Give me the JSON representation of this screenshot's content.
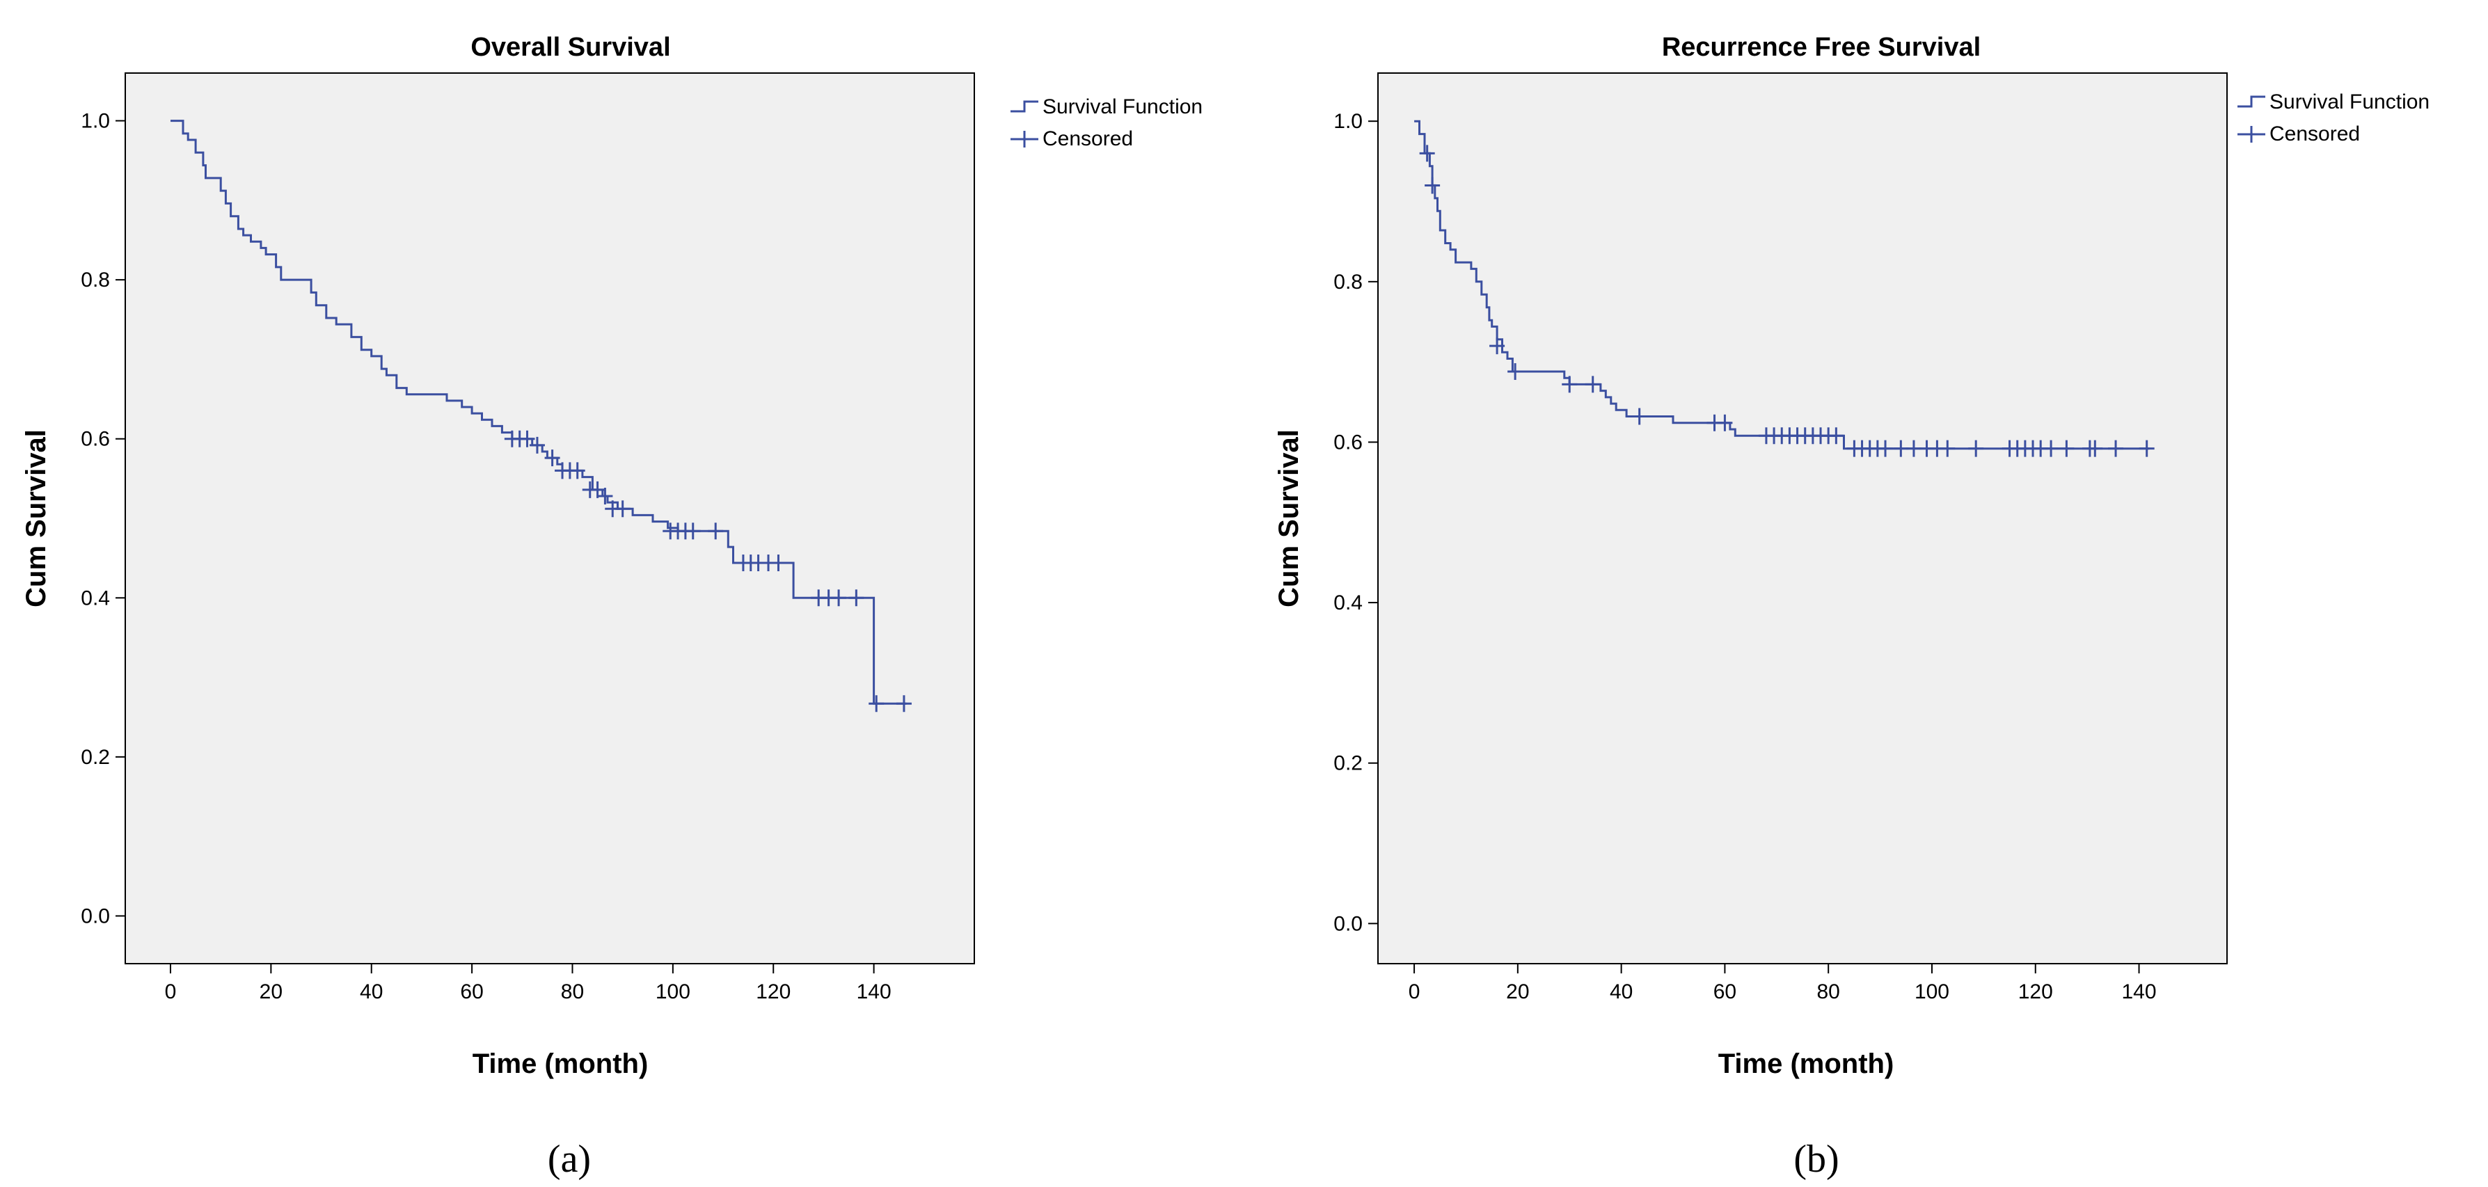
{
  "colors": {
    "plot_background": "#f0f0f0",
    "plot_border": "#000000",
    "curve": "#3b4fa0",
    "axis": "#000000"
  },
  "chart_data": [
    {
      "type": "line",
      "subtype": "kaplan-meier-step",
      "panel_caption": "(a)",
      "title": "Overall Survival",
      "xlabel": "Time (month)",
      "ylabel": "Cum Survival",
      "xlim": [
        -9,
        160
      ],
      "ylim": [
        -0.06,
        1.06
      ],
      "xticks": [
        0,
        20,
        40,
        60,
        80,
        100,
        120,
        140
      ],
      "yticks": [
        0.0,
        0.2,
        0.4,
        0.6,
        0.8,
        1.0
      ],
      "ytick_labels": [
        "0.0",
        "0.2",
        "0.4",
        "0.6",
        "0.8",
        "1.0"
      ],
      "grid": false,
      "legend": {
        "position": "top-right-outside",
        "entries": [
          {
            "label": "Survival Function",
            "symbol": "step",
            "icon": "step-line-icon"
          },
          {
            "label": "Censored",
            "symbol": "plus",
            "icon": "plus-marker-icon"
          }
        ]
      },
      "series": [
        {
          "name": "Survival Function",
          "steps": [
            [
              0,
              1.0
            ],
            [
              2.5,
              0.984
            ],
            [
              3.5,
              0.976
            ],
            [
              5,
              0.96
            ],
            [
              6.5,
              0.944
            ],
            [
              7,
              0.928
            ],
            [
              10,
              0.912
            ],
            [
              11,
              0.896
            ],
            [
              12,
              0.88
            ],
            [
              13.5,
              0.864
            ],
            [
              14.5,
              0.856
            ],
            [
              16,
              0.848
            ],
            [
              18,
              0.84
            ],
            [
              19,
              0.832
            ],
            [
              21,
              0.816
            ],
            [
              22,
              0.8
            ],
            [
              28,
              0.784
            ],
            [
              29,
              0.768
            ],
            [
              31,
              0.752
            ],
            [
              33,
              0.744
            ],
            [
              36,
              0.728
            ],
            [
              38,
              0.712
            ],
            [
              40,
              0.704
            ],
            [
              42,
              0.688
            ],
            [
              43,
              0.68
            ],
            [
              45,
              0.664
            ],
            [
              47,
              0.656
            ],
            [
              55,
              0.648
            ],
            [
              58,
              0.64
            ],
            [
              60,
              0.632
            ],
            [
              62,
              0.624
            ],
            [
              64,
              0.616
            ],
            [
              66,
              0.608
            ],
            [
              68,
              0.6
            ],
            [
              72,
              0.592
            ],
            [
              74,
              0.584
            ],
            [
              75,
              0.576
            ],
            [
              77,
              0.568
            ],
            [
              78,
              0.56
            ],
            [
              82,
              0.552
            ],
            [
              84,
              0.536
            ],
            [
              86,
              0.528
            ],
            [
              87,
              0.52
            ],
            [
              89,
              0.512
            ],
            [
              92,
              0.504
            ],
            [
              96,
              0.496
            ],
            [
              99,
              0.488
            ],
            [
              101,
              0.484
            ],
            [
              111,
              0.464
            ],
            [
              112,
              0.444
            ],
            [
              124,
              0.4
            ],
            [
              140,
              0.267
            ]
          ],
          "end_time": 146.5
        }
      ],
      "censored": {
        "x": [
          68,
          69.5,
          71,
          73,
          76,
          78,
          79.5,
          81,
          83.5,
          85,
          86.5,
          88,
          90,
          99.5,
          101,
          102.5,
          104,
          108.5,
          114,
          115.5,
          117,
          119,
          121,
          129,
          131,
          133,
          136.5,
          140.5,
          146
        ],
        "y": [
          0.6,
          0.6,
          0.6,
          0.592,
          0.576,
          0.56,
          0.56,
          0.56,
          0.536,
          0.536,
          0.528,
          0.512,
          0.512,
          0.484,
          0.484,
          0.484,
          0.484,
          0.484,
          0.444,
          0.444,
          0.444,
          0.444,
          0.444,
          0.4,
          0.4,
          0.4,
          0.4,
          0.267,
          0.267
        ]
      }
    },
    {
      "type": "line",
      "subtype": "kaplan-meier-step",
      "panel_caption": "(b)",
      "title": "Recurrence Free Survival",
      "xlabel": "Time (month)",
      "ylabel": "Cum Survival",
      "xlim": [
        -7,
        157
      ],
      "ylim": [
        -0.05,
        1.06
      ],
      "xticks": [
        0,
        20,
        40,
        60,
        80,
        100,
        120,
        140
      ],
      "yticks": [
        0.0,
        0.2,
        0.4,
        0.6,
        0.8,
        1.0
      ],
      "ytick_labels": [
        "0.0",
        "0.2",
        "0.4",
        "0.6",
        "0.8",
        "1.0"
      ],
      "grid": false,
      "legend": {
        "position": "top-right-outside",
        "entries": [
          {
            "label": "Survival Function",
            "symbol": "step",
            "icon": "step-line-icon"
          },
          {
            "label": "Censored",
            "symbol": "plus",
            "icon": "plus-marker-icon"
          }
        ]
      },
      "series": [
        {
          "name": "Survival Function",
          "steps": [
            [
              0,
              1.0
            ],
            [
              1,
              0.984
            ],
            [
              2,
              0.96
            ],
            [
              3,
              0.944
            ],
            [
              3.5,
              0.92
            ],
            [
              4,
              0.904
            ],
            [
              4.5,
              0.888
            ],
            [
              5,
              0.864
            ],
            [
              6,
              0.848
            ],
            [
              7,
              0.84
            ],
            [
              8,
              0.824
            ],
            [
              11,
              0.816
            ],
            [
              12,
              0.8
            ],
            [
              13,
              0.784
            ],
            [
              14,
              0.768
            ],
            [
              14.5,
              0.752
            ],
            [
              15,
              0.744
            ],
            [
              16,
              0.728
            ],
            [
              17,
              0.712
            ],
            [
              18,
              0.704
            ],
            [
              19,
              0.688
            ],
            [
              29,
              0.68
            ],
            [
              30,
              0.672
            ],
            [
              36,
              0.664
            ],
            [
              37,
              0.656
            ],
            [
              38,
              0.648
            ],
            [
              39,
              0.64
            ],
            [
              41,
              0.632
            ],
            [
              50,
              0.624
            ],
            [
              61,
              0.616
            ],
            [
              62,
              0.608
            ],
            [
              83,
              0.592
            ]
          ],
          "end_time": 142
        }
      ],
      "censored": {
        "x": [
          2.5,
          3.5,
          16,
          19.5,
          30,
          34.5,
          43.5,
          58,
          60,
          68,
          69.5,
          71,
          72.5,
          74,
          75.5,
          77,
          78.5,
          80,
          81.5,
          85,
          86.5,
          88,
          89.5,
          91,
          94,
          96.5,
          99,
          101,
          103,
          108.5,
          115,
          116.5,
          118,
          119.5,
          121,
          123,
          126,
          130.5,
          131.5,
          135.5,
          141.5
        ],
        "y": [
          0.96,
          0.92,
          0.72,
          0.688,
          0.672,
          0.672,
          0.632,
          0.624,
          0.624,
          0.608,
          0.608,
          0.608,
          0.608,
          0.608,
          0.608,
          0.608,
          0.608,
          0.608,
          0.608,
          0.592,
          0.592,
          0.592,
          0.592,
          0.592,
          0.592,
          0.592,
          0.592,
          0.592,
          0.592,
          0.592,
          0.592,
          0.592,
          0.592,
          0.592,
          0.592,
          0.592,
          0.592,
          0.592,
          0.592,
          0.592,
          0.592
        ]
      }
    }
  ]
}
